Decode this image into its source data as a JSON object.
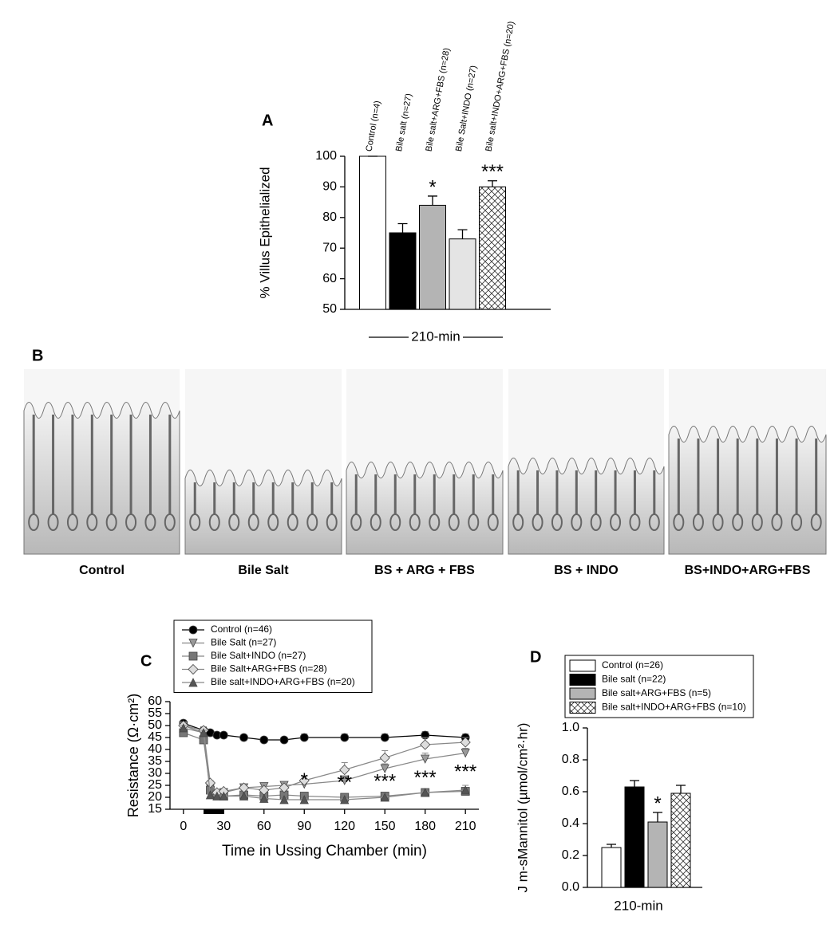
{
  "chart_data": [
    {
      "type": "bar",
      "panel_label": "A",
      "y_label": "% Villus Epithelialized",
      "x_label": "210-min",
      "categories": [
        "Control (n=4)",
        "Bile salt (n=27)",
        "Bile salt+ARG+FBS (n=28)",
        "Bile Salt+INDO (n=27)",
        "Bile salt+INDO+ARG+FBS (n=20)"
      ],
      "values": [
        100,
        75,
        84,
        73,
        90
      ],
      "errors": [
        0,
        3,
        3,
        3,
        2
      ],
      "colors": [
        "#ffffff",
        "#000000",
        "#b4b4b4",
        "#e4e4e4",
        "hatch"
      ],
      "value_annotations": [
        null,
        null,
        "*",
        null,
        "***"
      ],
      "ylim": [
        50,
        100
      ],
      "yticks": [
        50,
        60,
        70,
        80,
        90,
        100
      ]
    },
    {
      "type": "line",
      "panel_label": "C",
      "y_label": "Resistance (Ω·cm²)",
      "x_label": "Time in Ussing Chamber (min)",
      "x": [
        0,
        15,
        20,
        25,
        30,
        45,
        60,
        75,
        90,
        120,
        150,
        180,
        210
      ],
      "series": [
        {
          "name": "Control (n=46)",
          "color": "#000000",
          "marker": "circle",
          "values": [
            51,
            48,
            47,
            46,
            46,
            45,
            44,
            44,
            45,
            45,
            45,
            46,
            45
          ],
          "errors": [
            1.2,
            1.5,
            1,
            1,
            1,
            1,
            1,
            1,
            1.5,
            1.5,
            1.5,
            1.5,
            1.5
          ]
        },
        {
          "name": "Bile Salt (n=27)",
          "color": "#9a9a9a",
          "marker": "triangle-down",
          "values": [
            50,
            47,
            24,
            21,
            22,
            24,
            24.5,
            25,
            25.5,
            27,
            32,
            36,
            38.5
          ],
          "errors": [
            1.5,
            1.5,
            1,
            1,
            1,
            1,
            1,
            1,
            1.5,
            2,
            2,
            2.5,
            2
          ]
        },
        {
          "name": "Bile Salt+INDO (n=27)",
          "color": "#777777",
          "marker": "square",
          "values": [
            47,
            44,
            23,
            21,
            20.5,
            21,
            20.5,
            21,
            20.5,
            20,
            20.5,
            22,
            22.5
          ],
          "errors": [
            1,
            1,
            1,
            1,
            1,
            0.5,
            0.5,
            1,
            1,
            0.5,
            0.5,
            0.5,
            1
          ]
        },
        {
          "name": "Bile Salt+ARG+FBS (n=28)",
          "color": "#dddddd",
          "marker": "diamond",
          "values": [
            50,
            48,
            26,
            22,
            22.5,
            24,
            23,
            24,
            27,
            31.5,
            36.5,
            42,
            43
          ],
          "errors": [
            1.5,
            1.5,
            1,
            1,
            1,
            1.5,
            1.5,
            1.5,
            2,
            3,
            3,
            3,
            2
          ]
        },
        {
          "name": "Bile salt+INDO+ARG+FBS (n=20)",
          "color": "#555555",
          "marker": "triangle-up",
          "values": [
            49,
            47,
            21,
            20.5,
            20.5,
            20.5,
            19.5,
            19,
            19,
            19,
            20,
            22,
            23
          ],
          "errors": [
            1,
            1,
            0.5,
            0.5,
            0.5,
            0.5,
            0.5,
            0.5,
            0.5,
            0.5,
            0.5,
            0.5,
            2
          ]
        }
      ],
      "annotations": [
        {
          "x": 90,
          "text": "*"
        },
        {
          "x": 120,
          "text": "**"
        },
        {
          "x": 150,
          "text": "***"
        },
        {
          "x": 180,
          "text": "***"
        },
        {
          "x": 210,
          "text": "***"
        }
      ],
      "exposure": [
        15,
        30
      ],
      "xlim": [
        -10,
        220
      ],
      "xticks": [
        0,
        30,
        60,
        90,
        120,
        150,
        180,
        210
      ],
      "ylim": [
        15,
        60
      ],
      "yticks": [
        15,
        20,
        25,
        30,
        35,
        40,
        45,
        50,
        55,
        60
      ]
    },
    {
      "type": "bar",
      "panel_label": "D",
      "y_label": "J m-sMannitol (µmol/cm²·hr)",
      "x_label": "210-min",
      "legend": true,
      "categories": [
        "Control (n=26)",
        "Bile salt (n=22)",
        "Bile salt+ARG+FBS (n=5)",
        "Bile salt+INDO+ARG+FBS (n=10)"
      ],
      "values": [
        0.25,
        0.63,
        0.41,
        0.59
      ],
      "errors": [
        0.02,
        0.04,
        0.06,
        0.05
      ],
      "colors": [
        "#ffffff",
        "#000000",
        "#b4b4b4",
        "hatch"
      ],
      "value_annotations": [
        null,
        null,
        "*",
        null
      ],
      "ylim": [
        0,
        1
      ],
      "yticks": [
        {
          "value": 0,
          "label": "0.0"
        },
        0.2,
        0.4,
        0.6,
        0.8,
        {
          "value": 1,
          "label": "1.0"
        }
      ]
    }
  ],
  "panel_b": {
    "label": "B",
    "captions": [
      "Control",
      "Bile Salt",
      "BS + ARG + FBS",
      "BS + INDO",
      "BS+INDO+ARG+FBS"
    ]
  }
}
